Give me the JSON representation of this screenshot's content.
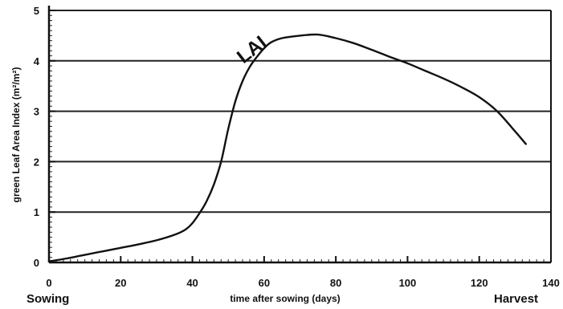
{
  "chart_data": {
    "type": "line",
    "ylabel": "green Leaf Area Index (m²/m²)",
    "xlabel": "time after sowing (days)",
    "xlim": [
      0,
      140
    ],
    "ylim": [
      0,
      5
    ],
    "x_ticks": [
      0,
      20,
      40,
      60,
      80,
      100,
      120,
      140
    ],
    "y_ticks": [
      0,
      1,
      2,
      3,
      4,
      5
    ],
    "grid": "horizontal",
    "start_label": "Sowing",
    "end_label": "Harvest",
    "series": [
      {
        "name": "LAI",
        "x": [
          0,
          5,
          10,
          15,
          20,
          25,
          30,
          35,
          38,
          40,
          42,
          44,
          46,
          48,
          50,
          52,
          54,
          56,
          58,
          60,
          62,
          65,
          70,
          75,
          80,
          85,
          90,
          95,
          100,
          105,
          110,
          115,
          120,
          125,
          130,
          133
        ],
        "y": [
          0.02,
          0.08,
          0.15,
          0.22,
          0.29,
          0.36,
          0.44,
          0.55,
          0.65,
          0.78,
          0.98,
          1.22,
          1.55,
          2.0,
          2.65,
          3.2,
          3.6,
          3.88,
          4.08,
          4.25,
          4.37,
          4.45,
          4.5,
          4.52,
          4.45,
          4.35,
          4.22,
          4.08,
          3.95,
          3.8,
          3.65,
          3.48,
          3.28,
          3.0,
          2.6,
          2.35
        ]
      }
    ]
  }
}
